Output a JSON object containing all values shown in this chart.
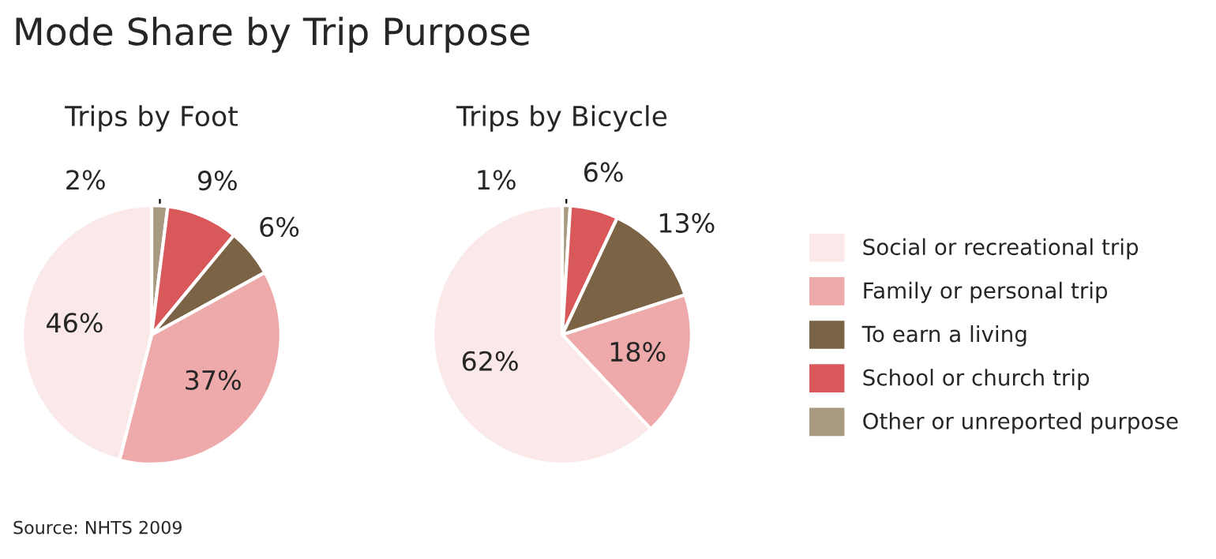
{
  "chart_data": [
    {
      "type": "pie",
      "title": "Trips by Foot",
      "categories": [
        "Other or unreported purpose",
        "School or church trip",
        "To earn a living",
        "Family or personal trip",
        "Social or recreational trip"
      ],
      "values": [
        2,
        9,
        6,
        37,
        46
      ],
      "value_labels": [
        "2%",
        "9%",
        "6%",
        "37%",
        "46%"
      ],
      "colors": [
        "#a89a80",
        "#d9595b",
        "#7a6445",
        "#eeaaaa",
        "#fbe9e9"
      ],
      "annotations": [
        "Mode Share by Trip Purpose",
        "Source: NHTS 2009"
      ],
      "legend": "right"
    },
    {
      "type": "pie",
      "title": "Trips by Bicycle",
      "categories": [
        null,
        null,
        null,
        null,
        null
      ],
      "values": [
        1,
        6,
        13,
        18,
        62
      ],
      "value_labels": [
        "1%",
        "6%",
        "13%",
        "18%",
        "62%"
      ],
      "colors": [
        "#a89a80",
        "#d9595b",
        "#7a6445",
        "#eeaaaa",
        "#fbe9e9"
      ]
    }
  ]
}
